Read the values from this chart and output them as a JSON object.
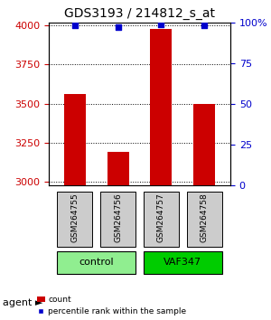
{
  "title": "GDS3193 / 214812_s_at",
  "samples": [
    "GSM264755",
    "GSM264756",
    "GSM264757",
    "GSM264758"
  ],
  "counts": [
    3560,
    3190,
    3980,
    3500
  ],
  "percentiles": [
    98,
    97,
    99,
    98
  ],
  "ylim_left": [
    2980,
    4020
  ],
  "ylim_right": [
    0,
    100
  ],
  "yticks_left": [
    3000,
    3250,
    3500,
    3750,
    4000
  ],
  "yticks_right": [
    0,
    25,
    50,
    75,
    100
  ],
  "ytick_labels_right": [
    "0",
    "25",
    "50",
    "75",
    "100%"
  ],
  "bar_color": "#cc0000",
  "dot_color": "#0000cc",
  "groups": [
    {
      "label": "control",
      "samples": [
        0,
        1
      ],
      "color": "#90ee90"
    },
    {
      "label": "VAF347",
      "samples": [
        2,
        3
      ],
      "color": "#00cc00"
    }
  ],
  "group_label": "agent",
  "grid_color": "#000000",
  "bar_width": 0.5,
  "sample_box_color": "#cccccc",
  "background_color": "#ffffff",
  "left_tick_color": "#cc0000",
  "right_tick_color": "#0000cc"
}
